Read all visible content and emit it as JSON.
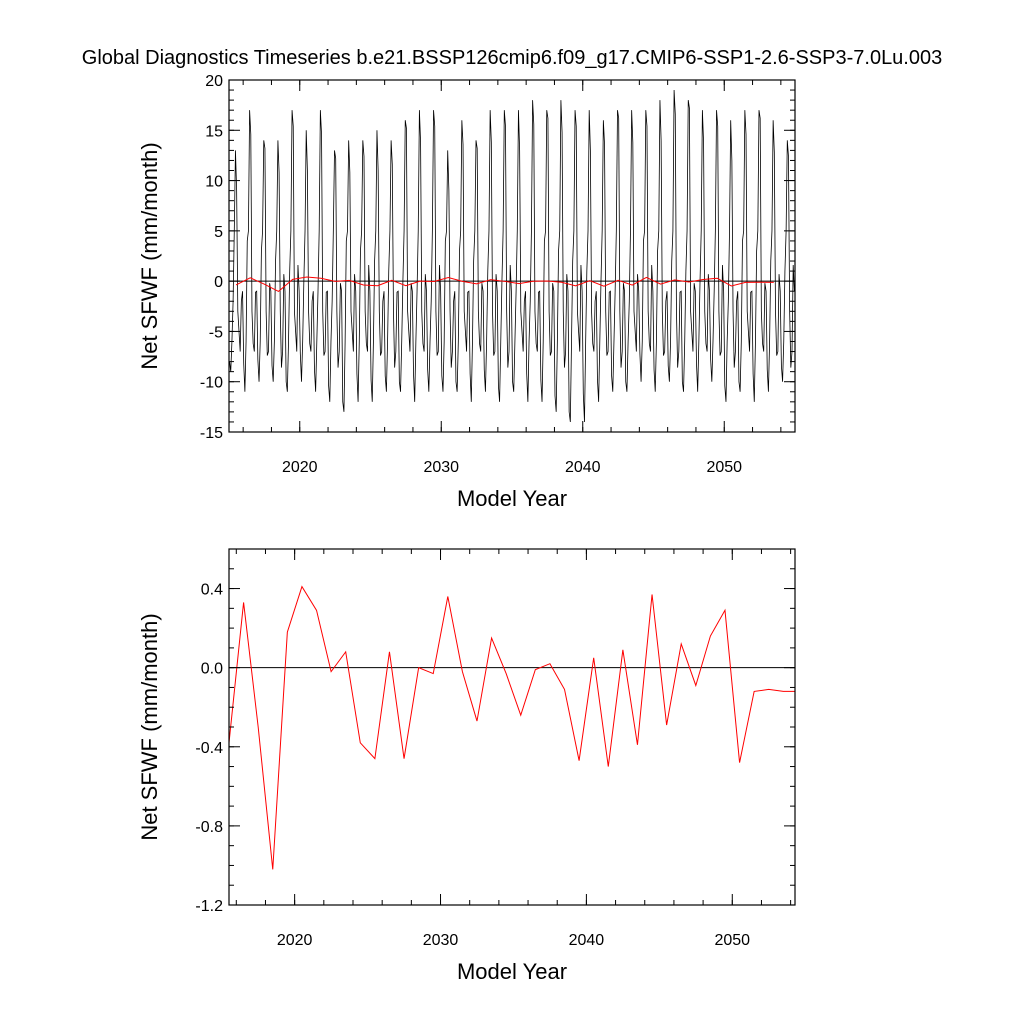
{
  "page": {
    "title": "Global Diagnostics Timeseries b.e21.BSSP126cmip6.f09_g17.CMIP6-SSP1-2.6-SSP3-7.0Lu.003"
  },
  "chart_data": [
    {
      "type": "line",
      "xlabel": "Model Year",
      "ylabel": "Net SFWF (mm/month)",
      "xlim": [
        2015,
        2055
      ],
      "ylim": [
        -15,
        20
      ],
      "x_ticks": [
        2020,
        2030,
        2040,
        2050
      ],
      "y_ticks": [
        -15,
        -10,
        -5,
        0,
        5,
        10,
        15,
        20
      ],
      "y_tick_labels": [
        "-15",
        "-10",
        "-5",
        "0",
        "5",
        "10",
        "15",
        "20"
      ],
      "zero_line": true,
      "series": [
        {
          "color": "#000000",
          "sampling": "monthly",
          "x_start": 2015.04,
          "x_step": 0.08333,
          "seasonal_cycle": [
            -9,
            -10,
            -6,
            1,
            5,
            13,
            12,
            -3,
            -8,
            -7,
            -2,
            -1
          ],
          "yearly_peaks": [
            13,
            17,
            14,
            14,
            17,
            15,
            17,
            13,
            14,
            14,
            15,
            14,
            16,
            17,
            17,
            13,
            16,
            14,
            17,
            17,
            17,
            18,
            17,
            18,
            17,
            17,
            16,
            17,
            17,
            17,
            18,
            19,
            18,
            17,
            17,
            16,
            17,
            17,
            16,
            14
          ],
          "yearly_troughs": [
            -9,
            -11,
            -10,
            -10,
            -11,
            -10,
            -11,
            -12,
            -13,
            -12,
            -12,
            -11,
            -11,
            -12,
            -11,
            -11,
            -11,
            -12,
            -11,
            -12,
            -11,
            -12,
            -12,
            -13,
            -14,
            -14,
            -12,
            -11,
            -11,
            -10,
            -11,
            -10,
            -11,
            -11,
            -10,
            -12,
            -11,
            -12,
            -11,
            -10
          ]
        },
        {
          "color": "#ff0000",
          "sampling": "annual mean",
          "x": [
            2015.5,
            2016.5,
            2017.5,
            2018.5,
            2019.5,
            2020.5,
            2021.5,
            2022.5,
            2023.5,
            2024.5,
            2025.5,
            2026.5,
            2027.5,
            2028.5,
            2029.5,
            2030.5,
            2031.5,
            2032.5,
            2033.5,
            2034.5,
            2035.5,
            2036.5,
            2037.5,
            2038.5,
            2039.5,
            2040.5,
            2041.5,
            2042.5,
            2043.5,
            2044.5,
            2045.5,
            2046.5,
            2047.5,
            2048.5,
            2049.5,
            2050.5,
            2051.5,
            2052.5,
            2053.5
          ],
          "y": [
            -0.38,
            0.33,
            -0.3,
            -1.02,
            0.18,
            0.41,
            0.29,
            -0.02,
            0.08,
            -0.38,
            -0.46,
            0.08,
            -0.46,
            0.0,
            -0.03,
            0.36,
            -0.02,
            -0.27,
            0.15,
            -0.03,
            -0.24,
            -0.01,
            0.02,
            -0.11,
            -0.47,
            0.05,
            -0.5,
            0.09,
            -0.39,
            0.37,
            -0.29,
            0.12,
            -0.09,
            0.16,
            0.29,
            -0.48,
            -0.12,
            -0.11,
            -0.12
          ]
        }
      ]
    },
    {
      "type": "line",
      "xlabel": "Model Year",
      "ylabel": "Net SFWF (mm/month)",
      "xlim": [
        2015.5,
        2054.3
      ],
      "ylim": [
        -1.2,
        0.6
      ],
      "x_ticks": [
        2020,
        2030,
        2040,
        2050
      ],
      "y_ticks": [
        -1.2,
        -0.8,
        -0.4,
        0.0,
        0.4
      ],
      "y_tick_labels": [
        "-1.2",
        "-0.8",
        "-0.4",
        "0.0",
        "0.4"
      ],
      "zero_line": true,
      "series": [
        {
          "color": "#ff0000",
          "sampling": "annual mean",
          "x": [
            2015.5,
            2016.5,
            2017.5,
            2018.5,
            2019.5,
            2020.5,
            2021.5,
            2022.5,
            2023.5,
            2024.5,
            2025.5,
            2026.5,
            2027.5,
            2028.5,
            2029.5,
            2030.5,
            2031.5,
            2032.5,
            2033.5,
            2034.5,
            2035.5,
            2036.5,
            2037.5,
            2038.5,
            2039.5,
            2040.5,
            2041.5,
            2042.5,
            2043.5,
            2044.5,
            2045.5,
            2046.5,
            2047.5,
            2048.5,
            2049.5,
            2050.5,
            2051.5,
            2052.5,
            2053.5,
            2054.3
          ],
          "y": [
            -0.38,
            0.33,
            -0.3,
            -1.02,
            0.18,
            0.41,
            0.29,
            -0.02,
            0.08,
            -0.38,
            -0.46,
            0.08,
            -0.46,
            0.0,
            -0.03,
            0.36,
            -0.02,
            -0.27,
            0.15,
            -0.03,
            -0.24,
            -0.01,
            0.02,
            -0.11,
            -0.47,
            0.05,
            -0.5,
            0.09,
            -0.39,
            0.37,
            -0.29,
            0.12,
            -0.09,
            0.16,
            0.29,
            -0.48,
            -0.12,
            -0.11,
            -0.12,
            -0.12
          ]
        }
      ]
    }
  ]
}
